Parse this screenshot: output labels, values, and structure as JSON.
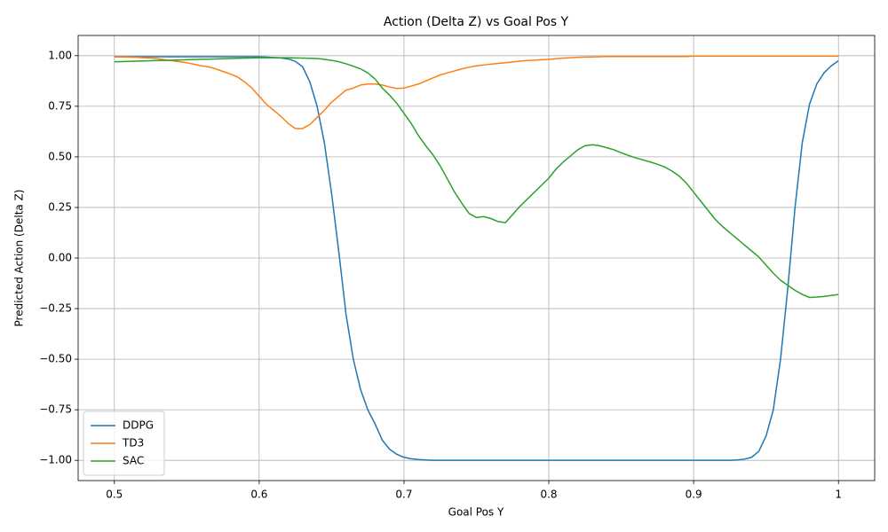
{
  "chart_data": {
    "type": "line",
    "title": "Action (Delta Z) vs Goal Pos Y",
    "xlabel": "Goal Pos Y",
    "ylabel": "Predicted Action (Delta Z)",
    "x": [
      0.5,
      0.505,
      0.51,
      0.515,
      0.52,
      0.525,
      0.53,
      0.535,
      0.54,
      0.545,
      0.55,
      0.555,
      0.56,
      0.565,
      0.57,
      0.575,
      0.58,
      0.585,
      0.59,
      0.595,
      0.6,
      0.605,
      0.61,
      0.615,
      0.62,
      0.625,
      0.63,
      0.635,
      0.64,
      0.645,
      0.65,
      0.655,
      0.66,
      0.665,
      0.67,
      0.675,
      0.68,
      0.685,
      0.69,
      0.695,
      0.7,
      0.705,
      0.71,
      0.715,
      0.72,
      0.725,
      0.73,
      0.735,
      0.74,
      0.745,
      0.75,
      0.755,
      0.76,
      0.765,
      0.77,
      0.775,
      0.78,
      0.785,
      0.79,
      0.795,
      0.8,
      0.805,
      0.81,
      0.815,
      0.82,
      0.825,
      0.83,
      0.835,
      0.84,
      0.845,
      0.85,
      0.855,
      0.86,
      0.865,
      0.87,
      0.875,
      0.88,
      0.885,
      0.89,
      0.895,
      0.9,
      0.905,
      0.91,
      0.915,
      0.92,
      0.925,
      0.93,
      0.935,
      0.94,
      0.945,
      0.95,
      0.955,
      0.96,
      0.965,
      0.97,
      0.975,
      0.98,
      0.985,
      0.99,
      0.995,
      1.0
    ],
    "series": [
      {
        "name": "DDPG",
        "color": "#1f77b4",
        "values": [
          0.995,
          0.995,
          0.995,
          0.995,
          0.995,
          0.995,
          0.995,
          0.995,
          0.995,
          0.995,
          0.995,
          0.995,
          0.995,
          0.995,
          0.995,
          0.995,
          0.995,
          0.995,
          0.995,
          0.995,
          0.995,
          0.993,
          0.991,
          0.989,
          0.984,
          0.972,
          0.945,
          0.87,
          0.75,
          0.57,
          0.32,
          0.03,
          -0.28,
          -0.5,
          -0.65,
          -0.75,
          -0.82,
          -0.9,
          -0.945,
          -0.97,
          -0.985,
          -0.992,
          -0.996,
          -0.998,
          -1.0,
          -1.0,
          -1.0,
          -1.0,
          -1.0,
          -1.0,
          -1.0,
          -1.0,
          -1.0,
          -1.0,
          -1.0,
          -1.0,
          -1.0,
          -1.0,
          -1.0,
          -1.0,
          -1.0,
          -1.0,
          -1.0,
          -1.0,
          -1.0,
          -1.0,
          -1.0,
          -1.0,
          -1.0,
          -1.0,
          -1.0,
          -1.0,
          -1.0,
          -1.0,
          -1.0,
          -1.0,
          -1.0,
          -1.0,
          -1.0,
          -1.0,
          -1.0,
          -1.0,
          -1.0,
          -1.0,
          -1.0,
          -1.0,
          -0.998,
          -0.994,
          -0.985,
          -0.955,
          -0.88,
          -0.75,
          -0.5,
          -0.15,
          0.25,
          0.57,
          0.76,
          0.86,
          0.915,
          0.95,
          0.975
        ]
      },
      {
        "name": "TD3",
        "color": "#ff7f0e",
        "values": [
          0.995,
          0.994,
          0.993,
          0.992,
          0.99,
          0.988,
          0.985,
          0.98,
          0.975,
          0.97,
          0.965,
          0.958,
          0.95,
          0.945,
          0.935,
          0.922,
          0.91,
          0.895,
          0.87,
          0.84,
          0.8,
          0.76,
          0.73,
          0.7,
          0.665,
          0.64,
          0.64,
          0.66,
          0.695,
          0.73,
          0.77,
          0.8,
          0.83,
          0.84,
          0.855,
          0.86,
          0.86,
          0.855,
          0.845,
          0.838,
          0.84,
          0.85,
          0.86,
          0.875,
          0.89,
          0.905,
          0.915,
          0.925,
          0.935,
          0.943,
          0.95,
          0.954,
          0.958,
          0.962,
          0.965,
          0.969,
          0.973,
          0.976,
          0.978,
          0.98,
          0.982,
          0.985,
          0.988,
          0.99,
          0.992,
          0.993,
          0.994,
          0.995,
          0.996,
          0.996,
          0.996,
          0.996,
          0.996,
          0.996,
          0.996,
          0.996,
          0.996,
          0.996,
          0.996,
          0.996,
          0.998,
          0.998,
          0.998,
          0.998,
          0.998,
          0.998,
          0.998,
          0.998,
          0.998,
          0.998,
          0.998,
          0.998,
          0.998,
          0.998,
          0.998,
          0.998,
          0.998,
          0.998,
          0.998,
          0.998,
          0.998
        ]
      },
      {
        "name": "SAC",
        "color": "#2ca02c",
        "values": [
          0.97,
          0.971,
          0.972,
          0.973,
          0.974,
          0.975,
          0.976,
          0.977,
          0.978,
          0.979,
          0.98,
          0.981,
          0.982,
          0.983,
          0.984,
          0.985,
          0.986,
          0.987,
          0.988,
          0.989,
          0.99,
          0.99,
          0.99,
          0.99,
          0.99,
          0.989,
          0.988,
          0.987,
          0.986,
          0.982,
          0.977,
          0.97,
          0.96,
          0.948,
          0.935,
          0.915,
          0.885,
          0.84,
          0.805,
          0.765,
          0.715,
          0.665,
          0.605,
          0.555,
          0.51,
          0.455,
          0.39,
          0.325,
          0.27,
          0.22,
          0.2,
          0.205,
          0.195,
          0.18,
          0.175,
          0.215,
          0.255,
          0.29,
          0.325,
          0.36,
          0.395,
          0.44,
          0.475,
          0.505,
          0.535,
          0.555,
          0.56,
          0.555,
          0.545,
          0.535,
          0.52,
          0.507,
          0.495,
          0.485,
          0.475,
          0.463,
          0.45,
          0.43,
          0.405,
          0.37,
          0.325,
          0.28,
          0.235,
          0.19,
          0.155,
          0.125,
          0.095,
          0.065,
          0.035,
          0.005,
          -0.035,
          -0.075,
          -0.11,
          -0.135,
          -0.16,
          -0.18,
          -0.195,
          -0.193,
          -0.19,
          -0.185,
          -0.18
        ]
      }
    ],
    "xlim": [
      0.475,
      1.025
    ],
    "ylim": [
      -1.1,
      1.1
    ],
    "xticks": [
      0.5,
      0.6,
      0.7,
      0.8,
      0.9,
      1.0
    ],
    "yticks": [
      {
        "value": -1.0,
        "label": "−1.00"
      },
      {
        "value": -0.75,
        "label": "−0.75"
      },
      {
        "value": -0.5,
        "label": "−0.50"
      },
      {
        "value": -0.25,
        "label": "−0.25"
      },
      {
        "value": 0,
        "label": "0.00"
      },
      {
        "value": 0.25,
        "label": "0.25"
      },
      {
        "value": 0.5,
        "label": "0.50"
      },
      {
        "value": 0.75,
        "label": "0.75"
      },
      {
        "value": 1.0,
        "label": "1.00"
      }
    ],
    "grid": true,
    "legend": "lower left"
  }
}
